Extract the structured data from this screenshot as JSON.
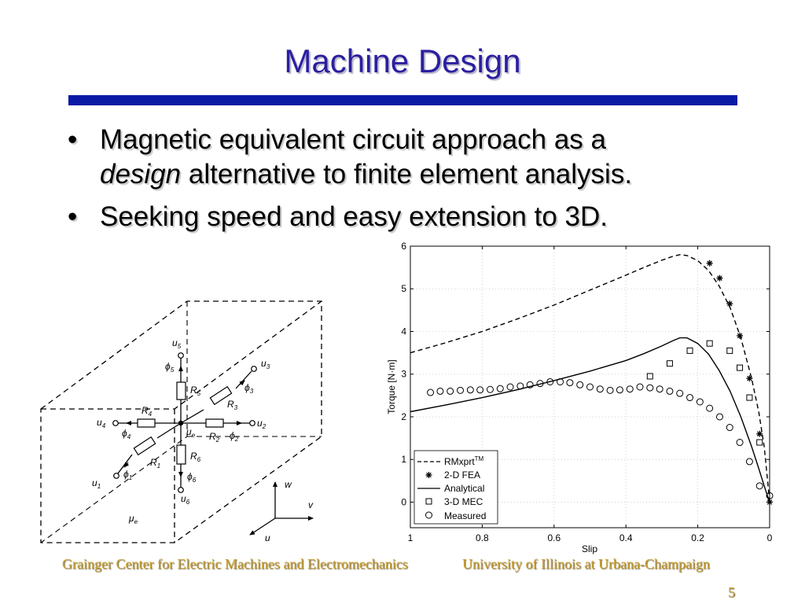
{
  "slide": {
    "title": "Machine Design",
    "bullets": [
      {
        "line1": "Magnetic equivalent circuit approach as a",
        "line2_em": "design",
        "line2_rest": " alternative to finite element analysis."
      },
      {
        "text": "Seeking speed and easy extension to 3D."
      }
    ],
    "footer_left": "Grainger Center for Electric Machines and Electromechanics",
    "footer_right": "University of Illinois at Urbana-Champaign",
    "page_number": "5"
  },
  "diagram": {
    "nodes": {
      "u1": "u",
      "u1_sub": "1",
      "u2": "u",
      "u2_sub": "2",
      "u3": "u",
      "u3_sub": "3",
      "u4": "u",
      "u4_sub": "4",
      "u5": "u",
      "u5_sub": "5",
      "u6": "u",
      "u6_sub": "6",
      "ue": "u",
      "ue_sub": "e"
    },
    "resistors": {
      "R1": "R",
      "R1_sub": "1",
      "R2": "R",
      "R2_sub": "2",
      "R3": "R",
      "R3_sub": "3",
      "R4": "R",
      "R4_sub": "4",
      "R5": "R",
      "R5_sub": "5",
      "R6": "R",
      "R6_sub": "6"
    },
    "fluxes": {
      "phi1": "ϕ",
      "phi1_sub": "1",
      "phi2": "ϕ",
      "phi2_sub": "2",
      "phi3": "ϕ",
      "phi3_sub": "3",
      "phi4": "ϕ",
      "phi4_sub": "4",
      "phi5": "ϕ",
      "phi5_sub": "5",
      "phi6": "ϕ",
      "phi6_sub": "6"
    },
    "mu": "μ",
    "mu_sub": "e",
    "axes": {
      "u": "u",
      "v": "v",
      "w": "w"
    }
  },
  "chart_data": {
    "type": "line",
    "xlabel": "Slip",
    "ylabel": "Torque [N·m]",
    "xlim": [
      1,
      0
    ],
    "ylim": [
      -0.6,
      6
    ],
    "x_reversed": true,
    "x_ticks": [
      "1",
      "0.8",
      "0.6",
      "0.4",
      "0.2",
      "0"
    ],
    "x_tick_values": [
      1,
      0.8,
      0.6,
      0.4,
      0.2,
      0
    ],
    "y_ticks": [
      "0",
      "1",
      "2",
      "3",
      "4",
      "5",
      "6"
    ],
    "y_tick_values": [
      0,
      1,
      2,
      3,
      4,
      5,
      6
    ],
    "grid": true,
    "legend_position": "bottom-left",
    "series": [
      {
        "name": "RMxprt",
        "name_sup": "TM",
        "style": "dashed",
        "x": [
          1,
          0.9,
          0.8,
          0.7,
          0.6,
          0.5,
          0.4,
          0.35,
          0.3,
          0.27,
          0.25,
          0.23,
          0.2,
          0.17,
          0.14,
          0.11,
          0.08,
          0.05,
          0.03,
          0.015,
          0.005,
          0
        ],
        "y": [
          3.5,
          3.74,
          4.0,
          4.3,
          4.62,
          4.97,
          5.32,
          5.5,
          5.67,
          5.76,
          5.8,
          5.78,
          5.66,
          5.43,
          5.06,
          4.56,
          3.85,
          2.9,
          2.1,
          1.3,
          0.45,
          0
        ]
      },
      {
        "name": "2-D FEA",
        "style": "asterisk",
        "x": [
          0.167,
          0.139,
          0.111,
          0.083,
          0.056,
          0.028,
          0
        ],
        "y": [
          5.6,
          5.25,
          4.65,
          3.9,
          2.9,
          1.6,
          0
        ]
      },
      {
        "name": "Analytical",
        "style": "solid",
        "x": [
          1,
          0.9,
          0.8,
          0.7,
          0.6,
          0.5,
          0.4,
          0.35,
          0.3,
          0.27,
          0.25,
          0.23,
          0.2,
          0.17,
          0.14,
          0.11,
          0.08,
          0.05,
          0.03,
          0.015,
          0.005,
          0
        ],
        "y": [
          2.12,
          2.28,
          2.45,
          2.64,
          2.85,
          3.07,
          3.32,
          3.48,
          3.66,
          3.78,
          3.85,
          3.85,
          3.72,
          3.47,
          3.08,
          2.6,
          2.0,
          1.3,
          0.78,
          0.38,
          0.12,
          0
        ]
      },
      {
        "name": "3-D MEC",
        "style": "square",
        "x": [
          0.333,
          0.278,
          0.222,
          0.167,
          0.111,
          0.083,
          0.056,
          0.028
        ],
        "y": [
          2.95,
          3.25,
          3.55,
          3.72,
          3.55,
          3.15,
          2.45,
          1.4
        ]
      },
      {
        "name": "Measured",
        "style": "circle",
        "x": [
          0.944,
          0.917,
          0.889,
          0.861,
          0.833,
          0.806,
          0.778,
          0.75,
          0.722,
          0.694,
          0.667,
          0.639,
          0.611,
          0.583,
          0.556,
          0.528,
          0.5,
          0.472,
          0.444,
          0.417,
          0.389,
          0.361,
          0.333,
          0.306,
          0.278,
          0.25,
          0.222,
          0.194,
          0.167,
          0.139,
          0.111,
          0.083,
          0.056,
          0.028,
          0
        ],
        "y": [
          2.57,
          2.6,
          2.6,
          2.62,
          2.63,
          2.63,
          2.64,
          2.66,
          2.7,
          2.72,
          2.75,
          2.78,
          2.82,
          2.82,
          2.8,
          2.75,
          2.7,
          2.65,
          2.62,
          2.63,
          2.65,
          2.7,
          2.68,
          2.65,
          2.6,
          2.55,
          2.45,
          2.35,
          2.2,
          2.0,
          1.75,
          1.4,
          0.95,
          0.38,
          0.15
        ]
      }
    ]
  }
}
